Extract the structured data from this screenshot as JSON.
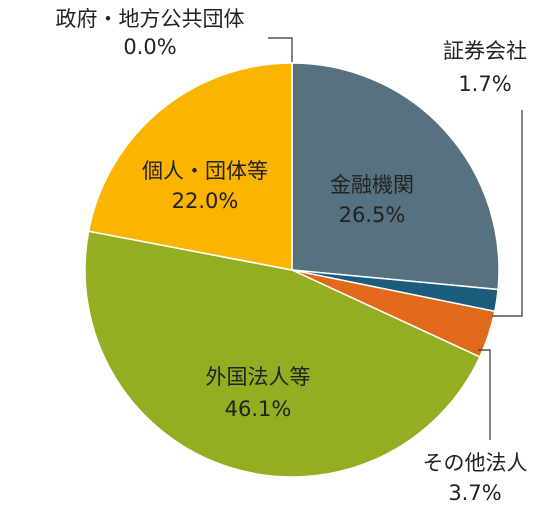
{
  "chart_data": {
    "type": "pie",
    "categories": [
      "金融機関",
      "証券会社",
      "その他法人",
      "外国法人等",
      "個人・団体等",
      "政府・地方公共団体"
    ],
    "values": [
      26.5,
      1.7,
      3.7,
      46.1,
      22.0,
      0.0
    ],
    "value_labels": [
      "26.5%",
      "1.7%",
      "3.7%",
      "46.1%",
      "22.0%",
      "0.0%"
    ],
    "colors": [
      "#56717f",
      "#1b5c7c",
      "#e06a1a",
      "#94ae22",
      "#fbb400",
      "#999999"
    ]
  }
}
